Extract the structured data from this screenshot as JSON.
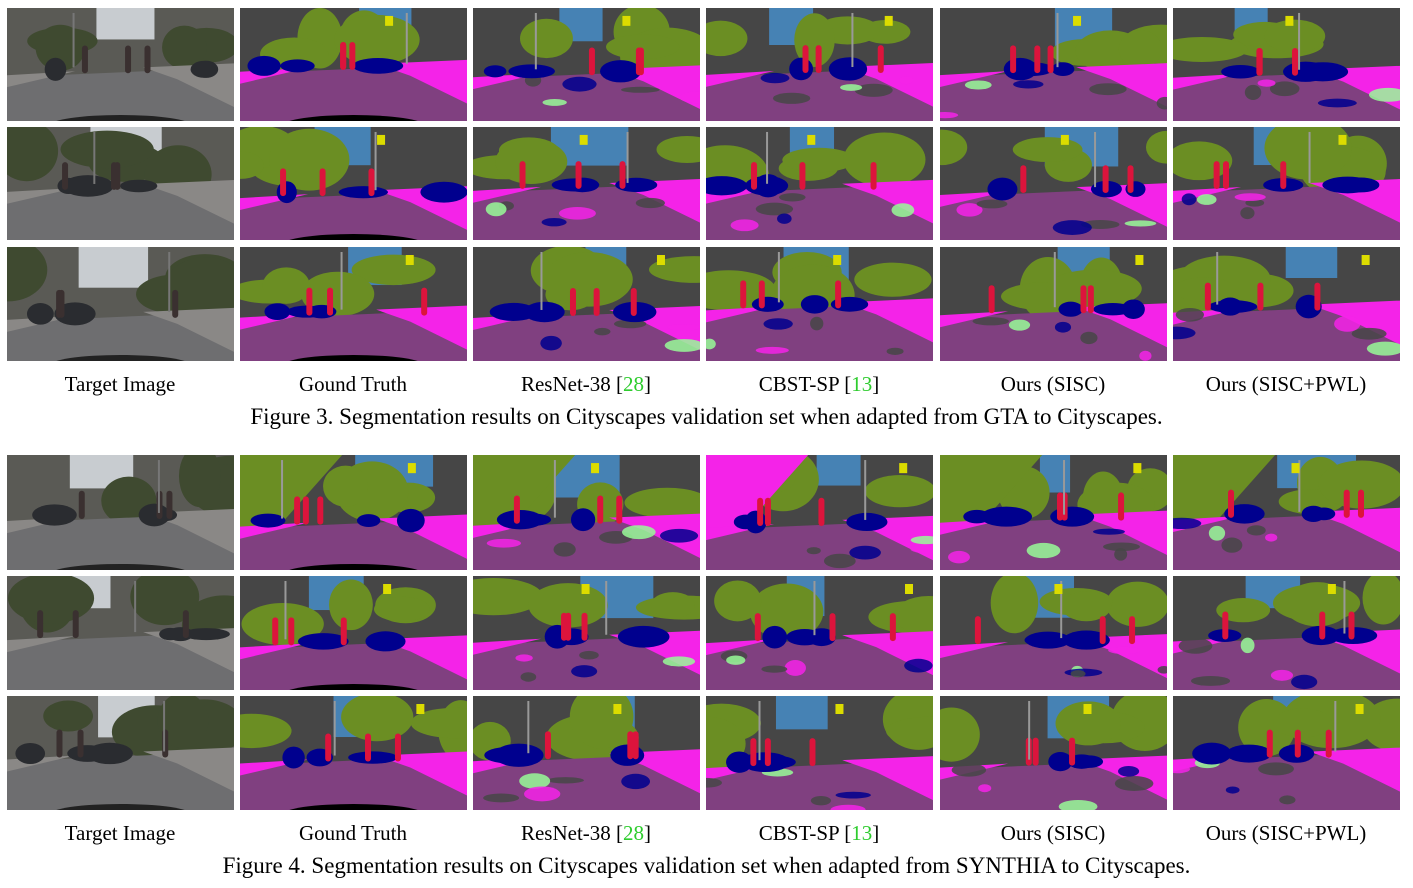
{
  "figures": [
    {
      "column_labels": [
        {
          "text": "Target Image"
        },
        {
          "text": "Gound Truth"
        },
        {
          "text": "ResNet-38 [",
          "cite": "28",
          "after": "]"
        },
        {
          "text": "CBST-SP [",
          "cite": "13",
          "after": "]"
        },
        {
          "text": "Ours (SISC)"
        },
        {
          "text": "Ours (SISC+PWL)"
        }
      ],
      "caption": "Figure 3. Segmentation results on Cityscapes validation set when adapted from GTA to Cityscapes."
    },
    {
      "column_labels": [
        {
          "text": "Target Image"
        },
        {
          "text": "Gound Truth"
        },
        {
          "text": "ResNet-38 [",
          "cite": "28",
          "after": "]"
        },
        {
          "text": "CBST-SP [",
          "cite": "13",
          "after": "]"
        },
        {
          "text": "Ours (SISC)"
        },
        {
          "text": "Ours (SISC+PWL)"
        }
      ],
      "caption": "Figure 4. Segmentation results on Cityscapes validation set when adapted from SYNTHIA to Cityscapes."
    }
  ]
}
